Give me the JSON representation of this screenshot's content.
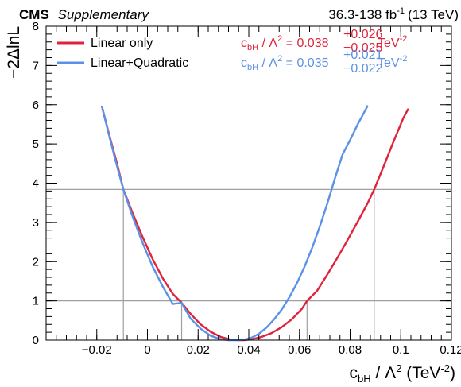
{
  "header": {
    "experiment": "CMS",
    "label": "Supplementary",
    "lumi_value": "36.3-138 fb",
    "lumi_exp": "-1",
    "energy": "(13 TeV)"
  },
  "colors": {
    "linear": "#e0233b",
    "quadratic": "#5b92e5",
    "ref_lines": "#a0a0a0",
    "frame": "#000000"
  },
  "legend": {
    "items": [
      {
        "label": "Linear only",
        "color": "#e0233b"
      },
      {
        "label": "Linear+Quadratic",
        "color": "#5b92e5"
      }
    ]
  },
  "results": [
    {
      "coef": "c",
      "coef_sub": "bH",
      "sep": " / Λ",
      "sep_sup": "2",
      "eq": " = 0.038",
      "up": "+0.026",
      "down": "−0.025",
      "unit": "TeV",
      "unit_sup": "-2",
      "color": "#e0233b"
    },
    {
      "coef": "c",
      "coef_sub": "bH",
      "sep": " / Λ",
      "sep_sup": "2",
      "eq": " = 0.035",
      "up": "+0.021",
      "down": "−0.022",
      "unit": "TeV",
      "unit_sup": "-2",
      "color": "#5b92e5"
    }
  ],
  "chart_data": {
    "type": "line",
    "title": "",
    "xlabel": {
      "main": "c",
      "sub": "bH",
      "rest": " / Λ",
      "sup": "2",
      "unit": " (TeV",
      "unit_sup": "-2",
      "close": ")"
    },
    "ylabel": "−2ΔlnL",
    "xlim": [
      -0.04,
      0.12
    ],
    "ylim": [
      0,
      8
    ],
    "x_ticks": [
      -0.02,
      0,
      0.02,
      0.04,
      0.06,
      0.08,
      0.1,
      0.12
    ],
    "x_tick_labels": [
      "−0.02",
      "0",
      "0.02",
      "0.04",
      "0.06",
      "0.08",
      "0.1",
      "0.12"
    ],
    "y_ticks": [
      0,
      1,
      2,
      3,
      4,
      5,
      6,
      7,
      8
    ],
    "y_tick_labels": [
      "0",
      "1",
      "2",
      "3",
      "4",
      "5",
      "6",
      "7",
      "8"
    ],
    "reference_lines_y": [
      1,
      3.84
    ],
    "crossing_lines_x": [
      -0.0095,
      0.0135,
      0.063,
      0.0895
    ],
    "grid": false,
    "legend_position": "top-left",
    "series": [
      {
        "name": "Linear only",
        "color": "#e0233b",
        "x": [
          -0.018,
          -0.015,
          -0.012,
          -0.0095,
          -0.006,
          -0.002,
          0.002,
          0.006,
          0.01,
          0.0135,
          0.017,
          0.021,
          0.025,
          0.029,
          0.033,
          0.036,
          0.038,
          0.041,
          0.045,
          0.049,
          0.053,
          0.057,
          0.061,
          0.063,
          0.067,
          0.071,
          0.075,
          0.079,
          0.083,
          0.087,
          0.0895,
          0.093,
          0.097,
          0.101,
          0.103
        ],
        "y": [
          5.96,
          5.21,
          4.5,
          3.84,
          3.26,
          2.64,
          2.07,
          1.58,
          1.18,
          0.95,
          0.67,
          0.4,
          0.21,
          0.08,
          0.01,
          0.0,
          0.0,
          0.02,
          0.08,
          0.18,
          0.33,
          0.53,
          0.8,
          1.0,
          1.26,
          1.67,
          2.1,
          2.55,
          3.02,
          3.5,
          3.84,
          4.39,
          5.04,
          5.66,
          5.9
        ]
      },
      {
        "name": "Linear+Quadratic",
        "color": "#5b92e5",
        "x": [
          -0.018,
          -0.015,
          -0.012,
          -0.0095,
          -0.006,
          -0.002,
          0.002,
          0.006,
          0.01,
          0.0135,
          0.017,
          0.021,
          0.025,
          0.029,
          0.032,
          0.035,
          0.038,
          0.041,
          0.044,
          0.047,
          0.05,
          0.053,
          0.056,
          0.059,
          0.062,
          0.065,
          0.068,
          0.071,
          0.074,
          0.077,
          0.08,
          0.083,
          0.086,
          0.087
        ],
        "y": [
          5.96,
          5.18,
          4.43,
          3.84,
          3.17,
          2.49,
          1.88,
          1.37,
          0.92,
          0.95,
          0.55,
          0.29,
          0.11,
          0.02,
          0.0,
          0.0,
          0.01,
          0.06,
          0.16,
          0.32,
          0.53,
          0.78,
          1.09,
          1.45,
          1.87,
          2.35,
          2.89,
          3.48,
          4.12,
          4.73,
          5.1,
          5.5,
          5.86,
          5.98
        ]
      }
    ]
  }
}
